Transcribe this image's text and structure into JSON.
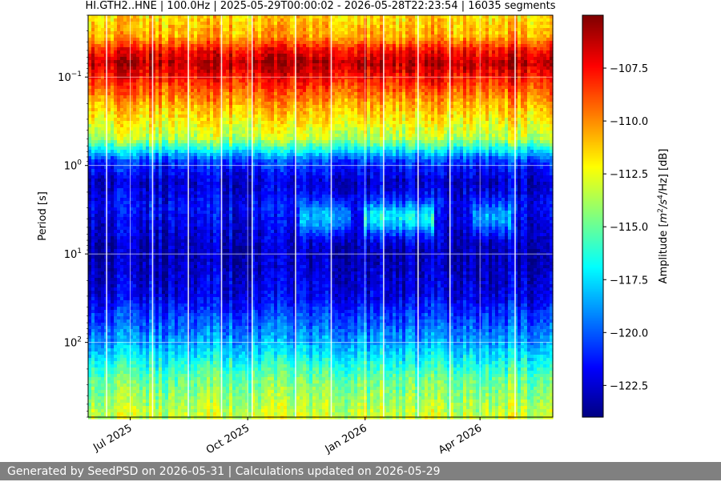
{
  "chart_data": {
    "type": "heatmap",
    "title": "HI.GTH2..HNE | 100.0Hz | 2025-05-29T00:00:02 - 2026-05-28T22:23:54 | 16035 segments",
    "ylabel": "Period [s]",
    "yscale": "log",
    "y_inverted": true,
    "ylim": [
      0.02,
      700
    ],
    "y_ticks": [
      {
        "value": 0.1,
        "base": "10",
        "exp": "−1"
      },
      {
        "value": 1,
        "base": "10",
        "exp": "0"
      },
      {
        "value": 10,
        "base": "10",
        "exp": "1"
      },
      {
        "value": 100,
        "base": "10",
        "exp": "2"
      }
    ],
    "xlim": [
      "2025-05-29",
      "2026-05-28"
    ],
    "x_ticks": [
      {
        "date": "2025-07-01",
        "label": "Jul 2025"
      },
      {
        "date": "2025-10-01",
        "label": "Oct 2025"
      },
      {
        "date": "2026-01-01",
        "label": "Jan 2026"
      },
      {
        "date": "2026-04-01",
        "label": "Apr 2026"
      }
    ],
    "grid": true,
    "colormap": "jet",
    "colorbar": {
      "label": "Amplitude [m²/s⁴/Hz] [dB]",
      "label_parts": {
        "pre": "Amplitude [",
        "m": "m",
        "sup1": "2",
        "mid": "/s",
        "sup2": "4",
        "post": "/Hz] [dB]"
      },
      "range": [
        -124,
        -105
      ],
      "ticks": [
        -122.5,
        -120.0,
        -117.5,
        -115.0,
        -112.5,
        -110.0,
        -107.5
      ],
      "tick_labels": [
        "−122.5",
        "−120.0",
        "−117.5",
        "−115.0",
        "−112.5",
        "−110.0",
        "−107.5"
      ]
    },
    "period_profile": [
      {
        "period": 0.02,
        "db": -111.5
      },
      {
        "period": 0.035,
        "db": -110.5
      },
      {
        "period": 0.05,
        "db": -107.5
      },
      {
        "period": 0.07,
        "db": -106
      },
      {
        "period": 0.1,
        "db": -107.5
      },
      {
        "period": 0.2,
        "db": -110.5
      },
      {
        "period": 0.5,
        "db": -113.5
      },
      {
        "period": 0.9,
        "db": -120.5
      },
      {
        "period": 1.5,
        "db": -122.5
      },
      {
        "period": 3,
        "db": -121.5
      },
      {
        "period": 10,
        "db": -123
      },
      {
        "period": 30,
        "db": -122
      },
      {
        "period": 100,
        "db": -118.5
      },
      {
        "period": 250,
        "db": -115
      },
      {
        "period": 700,
        "db": -113
      }
    ],
    "microseism_windows": [
      {
        "start": "2025-11-10",
        "end": "2025-12-20",
        "boost_db": 3.5
      },
      {
        "start": "2026-01-01",
        "end": "2026-02-25",
        "boost_db": 5
      },
      {
        "start": "2026-03-25",
        "end": "2026-04-25",
        "boost_db": 3.5
      }
    ],
    "data_gaps": [
      "2025-06-12",
      "2025-07-18",
      "2025-08-15",
      "2025-09-10",
      "2025-10-04",
      "2025-11-07",
      "2025-12-05",
      "2026-01-15",
      "2026-02-11",
      "2026-03-08",
      "2026-04-28"
    ]
  },
  "footer": {
    "text": "Generated by SeedPSD on 2026-05-31 | Calculations updated on 2026-05-29"
  }
}
